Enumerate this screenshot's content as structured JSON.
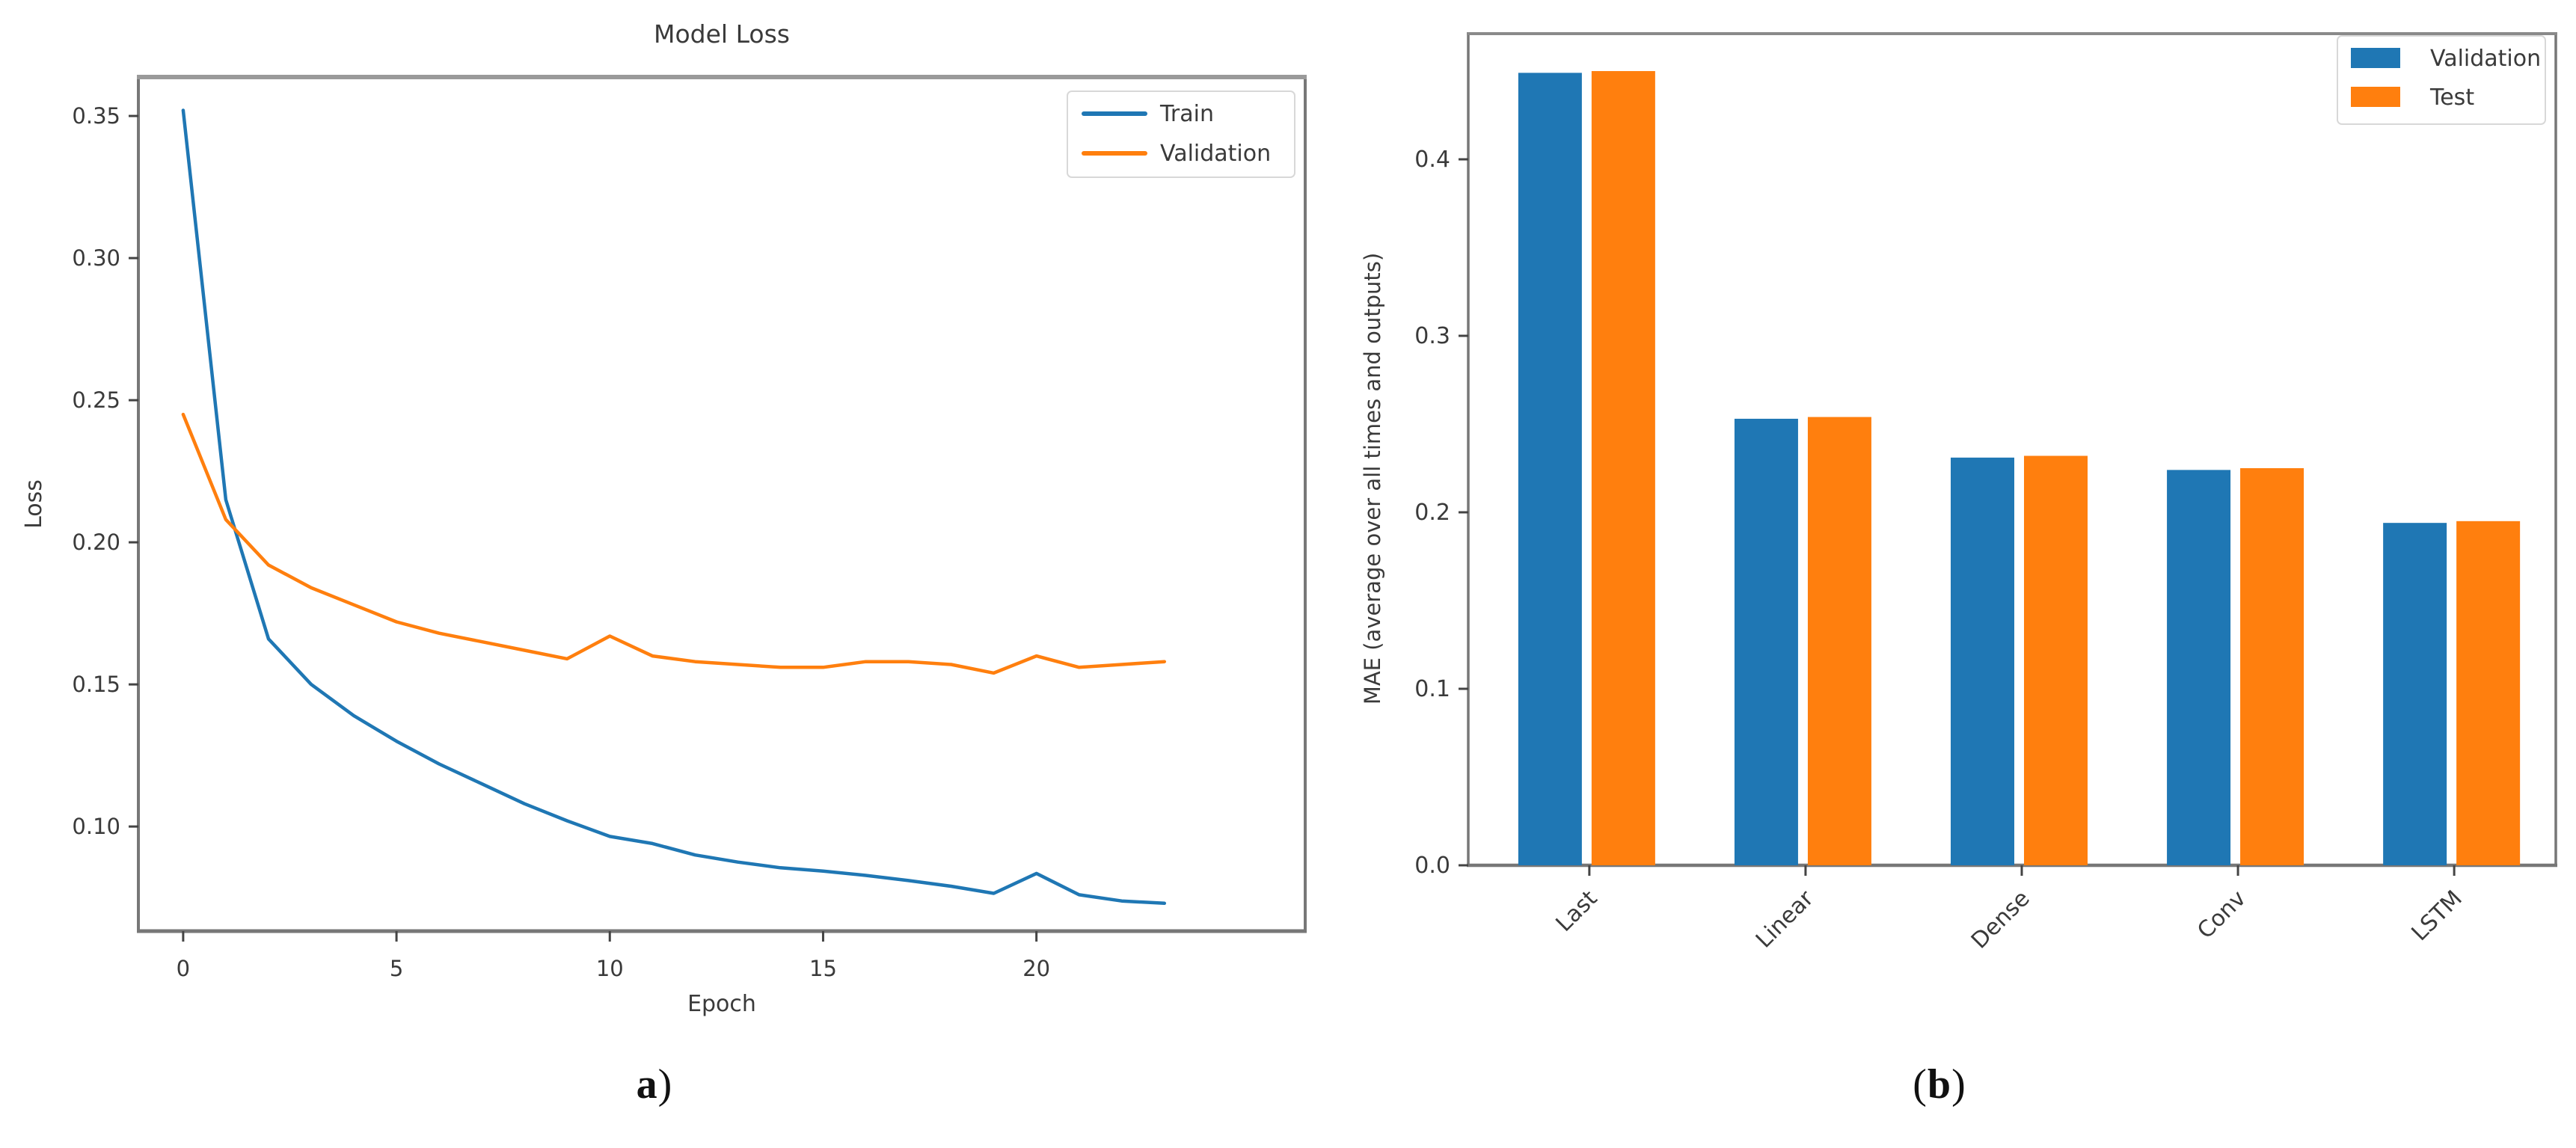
{
  "colors": {
    "train": "#1f77b4",
    "validation_line": "#ff7f0e",
    "validation_bar": "#1f77b4",
    "test_bar": "#ff7f0e",
    "text": "#3a3a3a",
    "tick": "#444444",
    "spine": "#777777",
    "spine_light": "#9a9a9a",
    "legend_border": "#d8d8d8",
    "legend_fill": "#ffffff"
  },
  "captions": {
    "a": {
      "pre": "",
      "letter": "a",
      "post": ")"
    },
    "b": {
      "pre": "(",
      "letter": "b",
      "post": ")"
    }
  },
  "chart_data": [
    {
      "id": "loss-chart",
      "type": "line",
      "title": "Model Loss",
      "xlabel": "Epoch",
      "ylabel": "Loss",
      "x": [
        0,
        1,
        2,
        3,
        4,
        5,
        6,
        7,
        8,
        9,
        10,
        11,
        12,
        13,
        14,
        15,
        16,
        17,
        18,
        19,
        20,
        21,
        22,
        23
      ],
      "series": [
        {
          "name": "Train",
          "color_key": "train",
          "values": [
            0.352,
            0.215,
            0.166,
            0.15,
            0.139,
            0.13,
            0.122,
            0.115,
            0.108,
            0.102,
            0.0965,
            0.094,
            0.09,
            0.0875,
            0.0855,
            0.0843,
            0.0828,
            0.081,
            0.079,
            0.0765,
            0.0835,
            0.076,
            0.0738,
            0.073
          ]
        },
        {
          "name": "Validation",
          "color_key": "validation_line",
          "values": [
            0.245,
            0.208,
            0.192,
            0.184,
            0.178,
            0.172,
            0.168,
            0.165,
            0.162,
            0.159,
            0.167,
            0.16,
            0.158,
            0.157,
            0.156,
            0.156,
            0.158,
            0.158,
            0.157,
            0.154,
            0.16,
            0.156,
            0.157,
            0.158
          ]
        }
      ],
      "xlim": [
        -1.05,
        26.3
      ],
      "ylim": [
        0.0632,
        0.3637
      ],
      "xticks": [
        0,
        5,
        10,
        15,
        20
      ],
      "yticks": [
        0.1,
        0.15,
        0.2,
        0.25,
        0.3,
        0.35
      ],
      "ytick_decimals": 2,
      "legend_position": "top-right",
      "grid": false
    },
    {
      "id": "mae-chart",
      "type": "bar",
      "title": "",
      "xlabel": "",
      "ylabel": "MAE (average over all times and outputs)",
      "categories": [
        "Last",
        "Linear",
        "Dense",
        "Conv",
        "LSTM"
      ],
      "series": [
        {
          "name": "Validation",
          "color_key": "validation_bar",
          "values": [
            0.449,
            0.253,
            0.231,
            0.224,
            0.194
          ]
        },
        {
          "name": "Test",
          "color_key": "test_bar",
          "values": [
            0.45,
            0.254,
            0.232,
            0.225,
            0.195
          ]
        }
      ],
      "ylim": [
        0,
        0.4712
      ],
      "yticks": [
        0.0,
        0.1,
        0.2,
        0.3,
        0.4
      ],
      "ytick_decimals": 1,
      "xtick_rotation": -45,
      "legend_position": "top-right",
      "grid": false
    }
  ]
}
